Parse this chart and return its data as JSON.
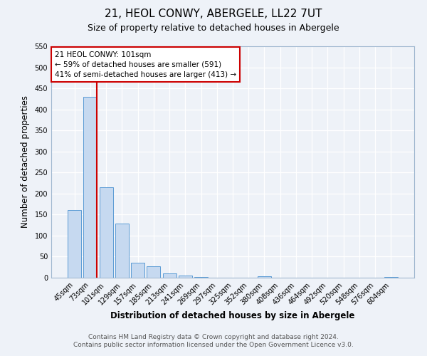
{
  "title": "21, HEOL CONWY, ABERGELE, LL22 7UT",
  "subtitle": "Size of property relative to detached houses in Abergele",
  "xlabel": "Distribution of detached houses by size in Abergele",
  "ylabel": "Number of detached properties",
  "categories": [
    "45sqm",
    "73sqm",
    "101sqm",
    "129sqm",
    "157sqm",
    "185sqm",
    "213sqm",
    "241sqm",
    "269sqm",
    "297sqm",
    "325sqm",
    "352sqm",
    "380sqm",
    "408sqm",
    "436sqm",
    "464sqm",
    "492sqm",
    "520sqm",
    "548sqm",
    "576sqm",
    "604sqm"
  ],
  "values": [
    160,
    430,
    215,
    128,
    35,
    27,
    10,
    5,
    2,
    0,
    0,
    0,
    3,
    0,
    0,
    0,
    0,
    0,
    0,
    0,
    2
  ],
  "bar_color": "#c6d9f0",
  "bar_edge_color": "#5b9bd5",
  "highlight_index": 2,
  "highlight_line_color": "#cc0000",
  "ylim": [
    0,
    550
  ],
  "yticks": [
    0,
    50,
    100,
    150,
    200,
    250,
    300,
    350,
    400,
    450,
    500,
    550
  ],
  "annotation_box_text": "21 HEOL CONWY: 101sqm\n← 59% of detached houses are smaller (591)\n41% of semi-detached houses are larger (413) →",
  "annotation_box_color": "#cc0000",
  "footer_line1": "Contains HM Land Registry data © Crown copyright and database right 2024.",
  "footer_line2": "Contains public sector information licensed under the Open Government Licence v3.0.",
  "bg_color": "#eef2f8",
  "grid_color": "#ffffff",
  "title_fontsize": 11,
  "subtitle_fontsize": 9,
  "axis_label_fontsize": 8.5,
  "tick_fontsize": 7,
  "footer_fontsize": 6.5
}
